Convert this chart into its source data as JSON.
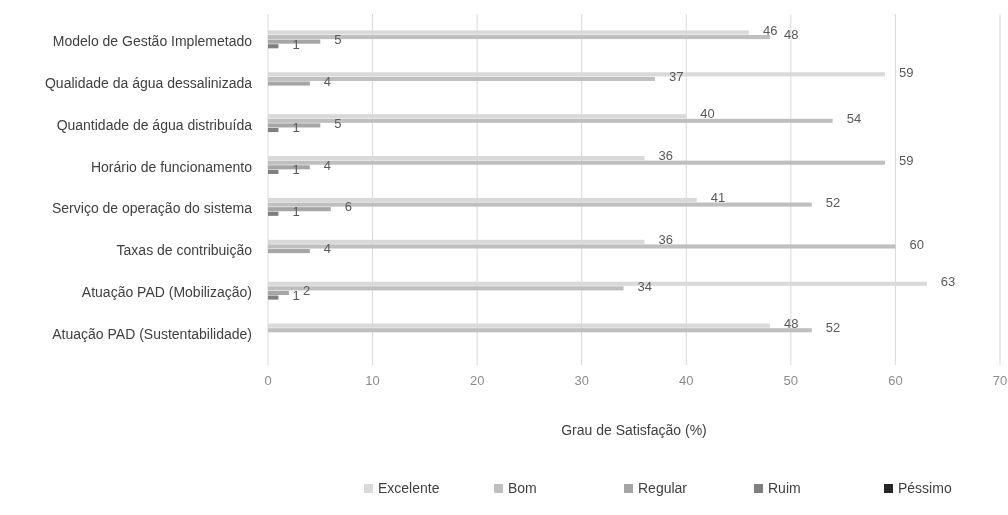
{
  "chart_data": {
    "type": "bar",
    "orientation": "horizontal",
    "xlabel": "Grau de Satisfação (%)",
    "categories": [
      "Modelo de Gestão Implemetado",
      "Qualidade da água dessalinizada",
      "Quantidade de água distribuída",
      "Horário de funcionamento",
      "Serviço de operação do sistema",
      "Taxas de contribuição",
      "Atuação PAD (Mobilização)",
      "Atuação PAD (Sustentabilidade)"
    ],
    "series": [
      {
        "name": "Excelente",
        "color": "#d9d9d9",
        "values": [
          46,
          59,
          40,
          36,
          41,
          36,
          63,
          48
        ],
        "value_labels": [
          "46",
          "59",
          "40",
          "36",
          "41",
          "36",
          "63",
          "48"
        ]
      },
      {
        "name": "Bom",
        "color": "#bfbfbf",
        "values": [
          48,
          37,
          54,
          59,
          52,
          60,
          34,
          52
        ],
        "value_labels": [
          "48",
          "37",
          "54",
          "59",
          "52",
          "60",
          "34",
          "52"
        ]
      },
      {
        "name": "Regular",
        "color": "#a6a6a6",
        "values": [
          5,
          4,
          5,
          4,
          6,
          4,
          2,
          null
        ],
        "value_labels": [
          "5",
          "4",
          "5",
          "4",
          "6",
          "4",
          "2",
          null
        ]
      },
      {
        "name": "Ruim",
        "color": "#7f7f7f",
        "values": [
          1,
          null,
          1,
          1,
          1,
          null,
          1,
          null
        ],
        "value_labels": [
          "1",
          null,
          "1",
          "1",
          "1",
          null,
          "1",
          null
        ]
      },
      {
        "name": "Péssimo",
        "color": "#262626",
        "values": [
          null,
          null,
          null,
          null,
          null,
          null,
          null,
          null
        ]
      }
    ],
    "xlim": [
      0,
      70
    ],
    "xticks": [
      0,
      10,
      20,
      30,
      40,
      50,
      60,
      70
    ],
    "grid": "x",
    "legend": "bottom"
  }
}
